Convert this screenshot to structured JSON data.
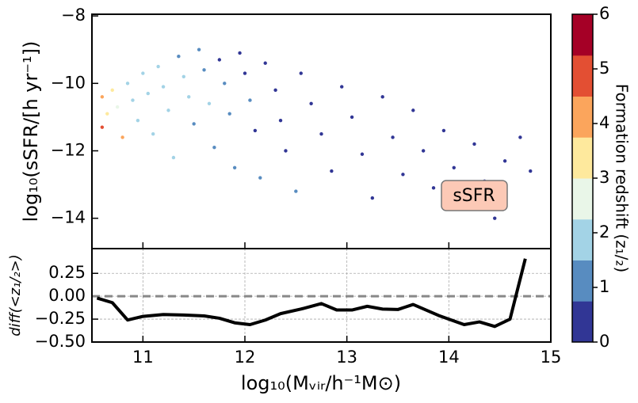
{
  "chart_data": [
    {
      "type": "scatter",
      "ylabel": "log₁₀(sSFR/[h yr⁻¹])",
      "annotation": "sSFR",
      "xlim": [
        10.5,
        15
      ],
      "xticks": [
        11,
        12,
        13,
        14,
        15
      ],
      "ylim": [
        -14.9,
        -7.95
      ],
      "yticks": [
        {
          "value": -8,
          "label": "−8"
        },
        {
          "value": -10,
          "label": "−10"
        },
        {
          "value": -12,
          "label": "−12"
        },
        {
          "value": -14,
          "label": "−14"
        }
      ],
      "grid": false,
      "x": [
        10.6,
        10.65,
        10.6,
        10.7,
        10.75,
        10.8,
        10.85,
        10.9,
        10.95,
        11.0,
        11.05,
        11.1,
        11.15,
        11.2,
        11.25,
        11.3,
        11.35,
        11.4,
        11.45,
        11.5,
        11.55,
        11.6,
        11.65,
        11.7,
        11.75,
        11.8,
        11.85,
        11.9,
        11.95,
        12.0,
        12.05,
        12.1,
        12.15,
        12.2,
        12.3,
        12.35,
        12.4,
        12.5,
        12.55,
        12.65,
        12.75,
        12.85,
        12.95,
        13.05,
        13.15,
        13.25,
        13.35,
        13.45,
        13.55,
        13.65,
        13.75,
        13.85,
        13.95,
        14.05,
        14.15,
        14.25,
        14.35,
        14.45,
        14.55,
        14.7,
        14.8
      ],
      "y": [
        -10.4,
        -10.9,
        -11.3,
        -10.2,
        -10.7,
        -11.6,
        -10.0,
        -10.5,
        -11.1,
        -9.7,
        -10.3,
        -11.5,
        -9.5,
        -10.1,
        -10.8,
        -12.2,
        -9.2,
        -9.8,
        -10.4,
        -11.2,
        -9.0,
        -9.6,
        -10.6,
        -11.9,
        -9.3,
        -10.0,
        -10.9,
        -12.5,
        -9.1,
        -9.7,
        -10.5,
        -11.4,
        -12.8,
        -9.4,
        -10.2,
        -11.1,
        -12.0,
        -13.2,
        -9.7,
        -10.6,
        -11.5,
        -12.6,
        -10.1,
        -11.0,
        -12.1,
        -13.4,
        -10.4,
        -11.6,
        -12.7,
        -10.8,
        -12.0,
        -13.1,
        -11.4,
        -12.5,
        -13.6,
        -11.8,
        -12.9,
        -14.0,
        -12.3,
        -11.6,
        -12.6
      ],
      "c": [
        4.2,
        3.5,
        5,
        3.1,
        2.5,
        4,
        2.2,
        2.0,
        1.9,
        1.8,
        1.7,
        2.1,
        1.6,
        1.9,
        1.8,
        1.7,
        1.2,
        1.6,
        1.7,
        1.3,
        0.9,
        1.4,
        1.5,
        1.2,
        0.6,
        1.0,
        1.1,
        0.8,
        0.4,
        0.7,
        0.9,
        0.5,
        1.0,
        0.3,
        0.5,
        0.6,
        0.4,
        0.8,
        0.2,
        0.4,
        0.3,
        0.5,
        0.2,
        0.3,
        0.2,
        0.4,
        0.1,
        0.2,
        0.3,
        0.1,
        0.2,
        0.1,
        0.1,
        0.3,
        0.2,
        0.1,
        0.1,
        0.2,
        0.1,
        0.1,
        0.1
      ],
      "colorbar": {
        "label": "Formation redshift (z₁/₂)",
        "lim": [
          0,
          6
        ],
        "ticks": [
          0,
          1,
          2,
          3,
          4,
          5,
          6
        ],
        "colors": [
          "#313695",
          "#588cc0",
          "#a3d3e6",
          "#e9f6e8",
          "#fee99d",
          "#fba55c",
          "#e34f33",
          "#a50026"
        ]
      }
    },
    {
      "type": "line",
      "ylabel": "diff(<z₁/₂>)",
      "xlabel": "log₁₀(Mᵥᵢᵣ/h⁻¹M⊙)",
      "xlim": [
        10.5,
        15
      ],
      "xticks": [
        11,
        12,
        13,
        14,
        15
      ],
      "ylim": [
        -0.5,
        0.52
      ],
      "yticks": [
        {
          "value": -0.5,
          "label": "−0.50"
        },
        {
          "value": -0.25,
          "label": "−0.25"
        },
        {
          "value": 0,
          "label": "0.00"
        },
        0.25
      ],
      "grid": true,
      "hline": 0,
      "color": "#000000",
      "x": [
        10.55,
        10.7,
        10.85,
        11.0,
        11.2,
        11.4,
        11.6,
        11.75,
        11.9,
        12.05,
        12.2,
        12.35,
        12.55,
        12.75,
        12.9,
        13.05,
        13.2,
        13.35,
        13.5,
        13.65,
        13.9,
        14.15,
        14.3,
        14.45,
        14.6,
        14.75
      ],
      "values": [
        -0.02,
        -0.07,
        -0.26,
        -0.22,
        -0.2,
        -0.205,
        -0.215,
        -0.24,
        -0.29,
        -0.31,
        -0.26,
        -0.19,
        -0.14,
        -0.08,
        -0.15,
        -0.15,
        -0.11,
        -0.14,
        -0.145,
        -0.09,
        -0.21,
        -0.31,
        -0.28,
        -0.33,
        -0.25,
        0.41
      ]
    }
  ]
}
